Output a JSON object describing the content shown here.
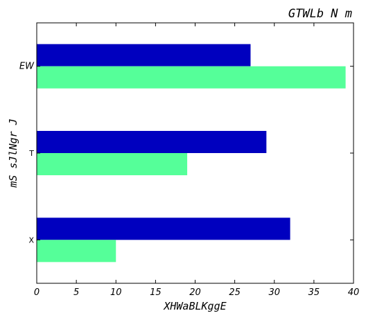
{
  "chart_data": {
    "type": "bar",
    "orientation": "horizontal",
    "title": "GTWLb N m",
    "xlabel": "XHWaBLKggE",
    "ylabel": "mS sJlNgr J",
    "categories": [
      "EW",
      "T",
      "X"
    ],
    "category_italic": [
      true,
      false,
      false
    ],
    "series": [
      {
        "values": [
          27,
          29,
          32
        ],
        "color": "#0000bf"
      },
      {
        "values": [
          39,
          19,
          10
        ],
        "color": "#55ff99"
      }
    ],
    "xlim": [
      0,
      40
    ],
    "xticks": [
      0,
      5,
      10,
      15,
      20,
      25,
      30,
      35,
      40
    ],
    "grid": false,
    "legend": "none"
  }
}
